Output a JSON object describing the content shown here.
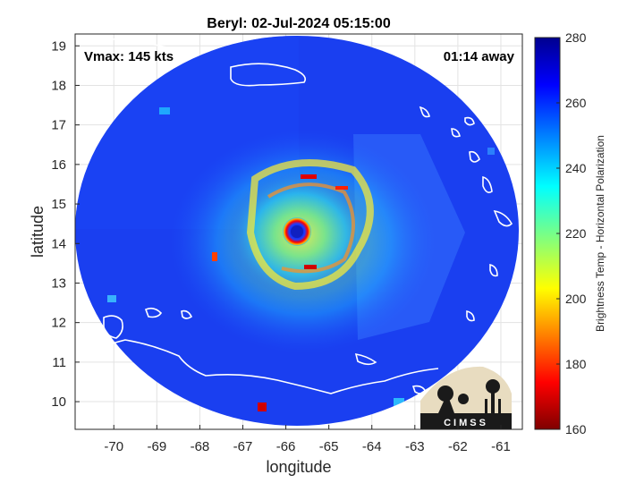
{
  "chart_data": {
    "type": "heatmap",
    "title": "Beryl: 02-Jul-2024 05:15:00",
    "xlabel": "longitude",
    "ylabel": "latitude",
    "xlim": [
      -70.9,
      -60.5
    ],
    "ylim": [
      9.3,
      19.3
    ],
    "x_ticks": [
      "-70",
      "-69",
      "-68",
      "-67",
      "-66",
      "-65",
      "-64",
      "-63",
      "-62",
      "-61"
    ],
    "x_tick_values": [
      -70,
      -69,
      -68,
      -67,
      -66,
      -65,
      -64,
      -63,
      -62,
      -61
    ],
    "y_ticks": [
      "10",
      "11",
      "12",
      "13",
      "14",
      "15",
      "16",
      "17",
      "18",
      "19"
    ],
    "y_tick_values": [
      10,
      11,
      12,
      13,
      14,
      15,
      16,
      17,
      18,
      19
    ],
    "grid": true,
    "storm_center": {
      "lon": -65.7,
      "lat": 14.3
    },
    "annotations": {
      "vmax": "Vmax: 145 kts",
      "away": "01:14 away"
    },
    "colorbar": {
      "label": "Brightness Temp - Horizontal Polarization",
      "range": [
        160,
        280
      ],
      "ticks": [
        "160",
        "180",
        "200",
        "220",
        "240",
        "260",
        "280"
      ],
      "tick_values": [
        160,
        180,
        200,
        220,
        240,
        260,
        280
      ],
      "colormap": "jet"
    },
    "logo_text": "CIMSS"
  }
}
